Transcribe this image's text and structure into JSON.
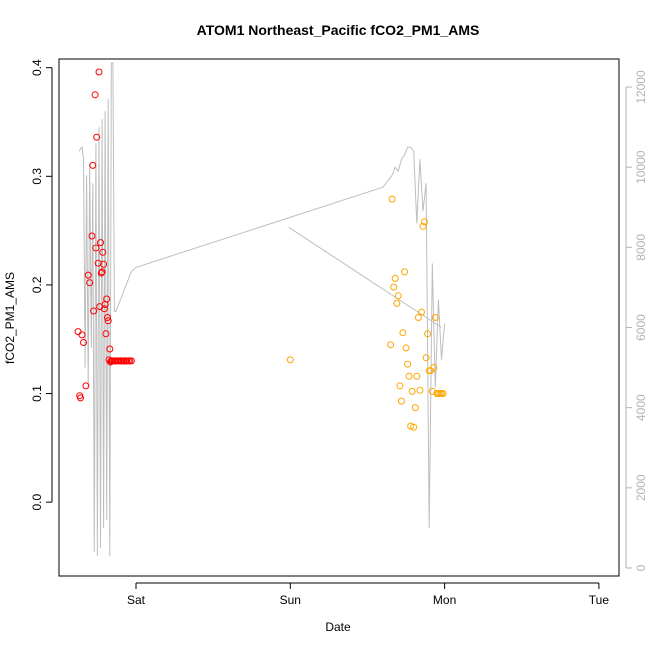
{
  "chart_data": {
    "type": "scatter",
    "title": "ATOM1 Northeast_Pacific fCO2_PM1_AMS",
    "xlabel": "Date",
    "ylabel": "fCO2_PM1_AMS",
    "x_ticks": [
      "Sat",
      "Sun",
      "Mon",
      "Tue"
    ],
    "y_ticks": [
      "0.0",
      "0.1",
      "0.2",
      "0.3",
      "0.4"
    ],
    "y2_ticks": [
      "0",
      "2000",
      "4000",
      "6000",
      "8000",
      "10000",
      "12000"
    ],
    "ylim": [
      -0.068,
      0.408
    ],
    "y2lim": [
      -200,
      12700
    ],
    "xlim": [
      -0.44,
      3.07
    ],
    "colors": {
      "red_series": "#ff0000",
      "orange_series": "#ffa500",
      "line": "#bebebe",
      "axis": "#000000",
      "right_axis": "#b3b3b3"
    },
    "series": [
      {
        "color": "#ff0000",
        "x": [
          -0.375,
          -0.365,
          -0.36,
          -0.35,
          -0.34,
          -0.325,
          -0.31,
          -0.3,
          -0.285,
          -0.28,
          -0.275,
          -0.265,
          -0.26,
          -0.255,
          -0.245,
          -0.24,
          -0.235,
          -0.23,
          -0.225,
          -0.22,
          -0.215,
          -0.21,
          -0.205,
          -0.2,
          -0.195,
          -0.19,
          -0.185,
          -0.18,
          -0.175,
          -0.17,
          -0.165,
          -0.16,
          -0.155,
          -0.15,
          -0.14,
          -0.135,
          -0.13,
          -0.12,
          -0.11,
          -0.1,
          -0.095,
          -0.09,
          -0.08,
          -0.075,
          -0.065,
          -0.06,
          -0.05,
          -0.04,
          -0.03
        ],
        "y": [
          0.157,
          0.098,
          0.096,
          0.154,
          0.147,
          0.107,
          0.209,
          0.202,
          0.245,
          0.31,
          0.176,
          0.375,
          0.234,
          0.336,
          0.22,
          0.396,
          0.18,
          0.239,
          0.211,
          0.212,
          0.23,
          0.219,
          0.178,
          0.182,
          0.155,
          0.187,
          0.17,
          0.167,
          0.131,
          0.141,
          0.129,
          0.13,
          0.13,
          0.13,
          0.13,
          0.13,
          0.13,
          0.13,
          0.13,
          0.13,
          0.13,
          0.13,
          0.13,
          0.13,
          0.13,
          0.13,
          0.13,
          0.13,
          0.13
        ]
      },
      {
        "color": "#ffa500",
        "x": [
          1.0,
          1.65,
          1.66,
          1.67,
          1.68,
          1.69,
          1.7,
          1.71,
          1.72,
          1.73,
          1.74,
          1.75,
          1.76,
          1.77,
          1.78,
          1.79,
          1.8,
          1.81,
          1.82,
          1.83,
          1.84,
          1.85,
          1.86,
          1.87,
          1.88,
          1.89,
          1.9,
          1.91,
          1.92,
          1.93,
          1.94,
          1.95,
          1.96,
          1.97,
          1.98,
          1.99
        ],
        "y": [
          0.131,
          0.145,
          0.279,
          0.198,
          0.206,
          0.183,
          0.19,
          0.107,
          0.093,
          0.156,
          0.212,
          0.142,
          0.127,
          0.116,
          0.07,
          0.102,
          0.069,
          0.087,
          0.116,
          0.17,
          0.103,
          0.175,
          0.254,
          0.258,
          0.133,
          0.155,
          0.121,
          0.121,
          0.102,
          0.124,
          0.17,
          0.1,
          0.1,
          0.1,
          0.1,
          0.1
        ]
      }
    ],
    "line_series": {
      "color": "#bebebe",
      "x": [
        -0.37,
        -0.35,
        -0.34,
        -0.33,
        -0.32,
        -0.31,
        -0.3,
        -0.29,
        -0.28,
        -0.27,
        -0.26,
        -0.25,
        -0.24,
        -0.23,
        -0.22,
        -0.21,
        -0.2,
        -0.19,
        -0.18,
        -0.17,
        -0.16,
        -0.15,
        -0.14,
        -0.13,
        -0.12,
        -0.11,
        -0.1,
        -0.09,
        -0.08,
        -0.07,
        -0.06,
        -0.05,
        -0.04,
        -0.03,
        0.0,
        1.6,
        1.62,
        1.64,
        1.66,
        1.68,
        1.7,
        1.72,
        1.74,
        1.76,
        1.78,
        1.8,
        1.82,
        1.84,
        1.86,
        1.88,
        1.9,
        1.92,
        1.94,
        1.96,
        1.98,
        2.0
      ],
      "y": [
        10400,
        10500,
        10200,
        5000,
        9800,
        4500,
        10100,
        5500,
        9600,
        400,
        10600,
        300,
        11000,
        500,
        11200,
        1000,
        11400,
        1200,
        11700,
        300,
        12600,
        12600,
        6400,
        6400,
        6500,
        6600,
        6700,
        6800,
        6900,
        7000,
        7100,
        7200,
        7300,
        7400,
        7500,
        9500,
        9600,
        9700,
        9800,
        10000,
        9900,
        10200,
        10300,
        10500,
        10500,
        10400,
        8600,
        10200,
        8900,
        9600,
        1000,
        7600,
        4500,
        6700,
        5200,
        6100
      ]
    }
  }
}
